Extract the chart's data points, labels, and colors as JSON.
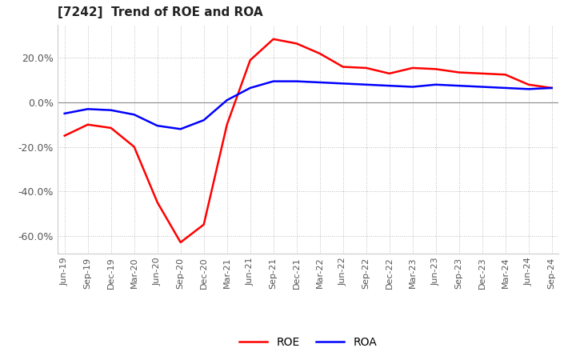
{
  "title": "[7242]  Trend of ROE and ROA",
  "ylim": [
    -68,
    35
  ],
  "yticks": [
    20,
    0,
    -20,
    -40,
    -60
  ],
  "background_color": "#ffffff",
  "grid_color": "#bbbbbb",
  "roe_color": "#ff0000",
  "roa_color": "#0000ff",
  "line_width": 1.8,
  "x_labels": [
    "Jun-19",
    "Sep-19",
    "Dec-19",
    "Mar-20",
    "Jun-20",
    "Sep-20",
    "Dec-20",
    "Mar-21",
    "Jun-21",
    "Sep-21",
    "Dec-21",
    "Mar-22",
    "Jun-22",
    "Sep-22",
    "Dec-22",
    "Mar-23",
    "Jun-23",
    "Sep-23",
    "Dec-23",
    "Mar-24",
    "Jun-24",
    "Sep-24"
  ],
  "roe_values": [
    -15.0,
    -10.0,
    -11.5,
    -20.0,
    -45.0,
    -63.0,
    -55.0,
    -10.0,
    19.0,
    28.5,
    26.5,
    22.0,
    16.0,
    15.5,
    13.0,
    15.5,
    15.0,
    13.5,
    13.0,
    12.5,
    8.0,
    6.5
  ],
  "roa_values": [
    -5.0,
    -3.0,
    -3.5,
    -5.5,
    -10.5,
    -12.0,
    -8.0,
    1.0,
    6.5,
    9.5,
    9.5,
    9.0,
    8.5,
    8.0,
    7.5,
    7.0,
    8.0,
    7.5,
    7.0,
    6.5,
    6.0,
    6.5
  ],
  "title_fontsize": 11,
  "tick_fontsize": 8,
  "ytick_fontsize": 9
}
